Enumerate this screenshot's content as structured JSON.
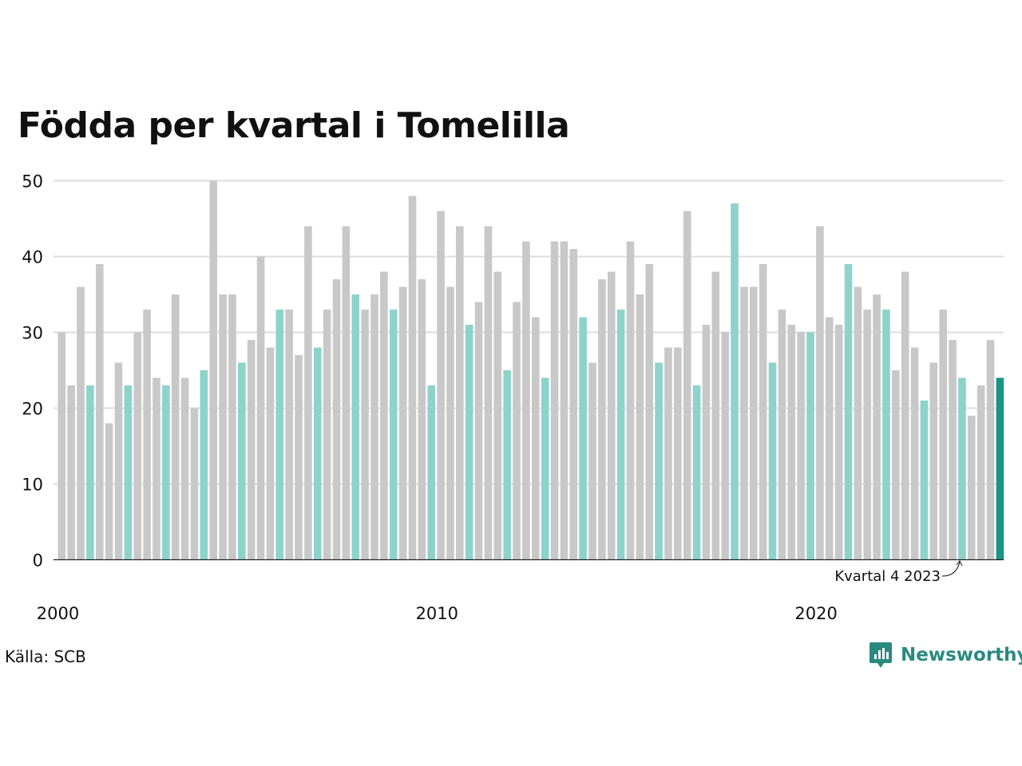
{
  "chart_data": {
    "type": "bar",
    "title": "Födda per kvartal i Tomelilla",
    "xlabel": "",
    "ylabel": "",
    "ylim": [
      0,
      50
    ],
    "yticks": [
      0,
      10,
      20,
      30,
      40,
      50
    ],
    "xtick_labels": [
      {
        "label": "2000",
        "year": 2000
      },
      {
        "label": "2010",
        "year": 2010
      },
      {
        "label": "2020",
        "year": 2020
      }
    ],
    "start_year": 2000,
    "grid": true,
    "values": [
      30,
      23,
      36,
      23,
      39,
      18,
      26,
      23,
      30,
      33,
      24,
      23,
      35,
      24,
      20,
      25,
      50,
      35,
      35,
      26,
      29,
      40,
      28,
      33,
      33,
      27,
      44,
      28,
      33,
      37,
      44,
      35,
      33,
      35,
      38,
      33,
      36,
      48,
      37,
      23,
      46,
      36,
      44,
      31,
      34,
      44,
      38,
      25,
      34,
      42,
      32,
      24,
      42,
      42,
      41,
      32,
      26,
      37,
      38,
      33,
      42,
      35,
      39,
      26,
      28,
      28,
      46,
      23,
      31,
      38,
      30,
      47,
      36,
      36,
      39,
      26,
      33,
      31,
      30,
      30,
      44,
      32,
      31,
      39,
      36,
      33,
      35,
      33,
      25,
      38,
      28,
      21,
      26,
      33,
      29,
      24,
      19,
      23,
      29,
      24
    ],
    "colors": {
      "other": "#c8c8c8",
      "same_quarter": "#8cd3cb",
      "latest": "#1a9485"
    },
    "annotation": "Kvartal 4 2023",
    "source": "Källa: SCB",
    "brand": "Newsworthy"
  }
}
